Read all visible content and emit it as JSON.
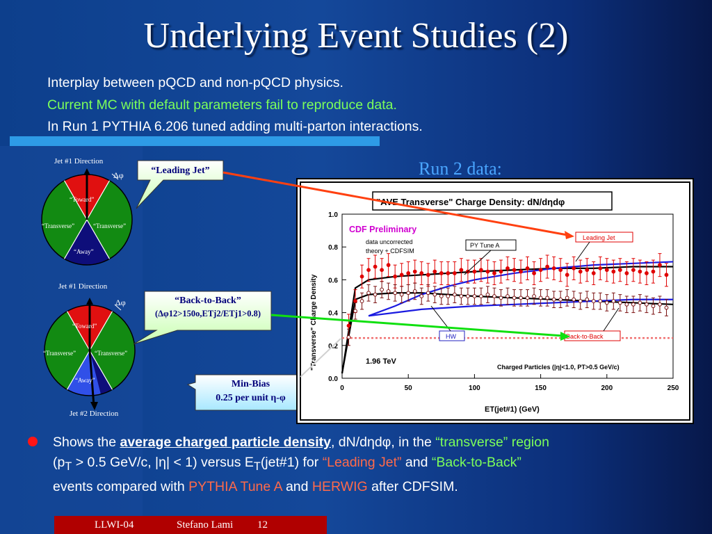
{
  "title": "Underlying Event Studies (2)",
  "intro": {
    "line1": "Interplay between pQCD and non-pQCD physics.",
    "line2": "Current MC with default parameters fail to reproduce data.",
    "line3": "In Run 1 PYTHIA 6.206 tuned adding multi-parton interactions."
  },
  "colors": {
    "green_text": "#7cff5a",
    "red_text": "#ff6a4a",
    "toward": "#e01010",
    "transverse": "#128a12",
    "away": "#0e0e7a",
    "away_light": "#3050e8"
  },
  "wheel1": {
    "top_label": "Jet #1 Direction",
    "dphi": "Δφ",
    "toward": "“Toward”",
    "transverse_left": "“Transverse”",
    "transverse_right": "“Transverse”",
    "away": "“Away”"
  },
  "wheel2": {
    "top_label": "Jet #1 Direction",
    "dphi": "Δφ",
    "toward": "“Toward”",
    "transverse_left": "“Transverse”",
    "transverse_right": "“Transverse”",
    "away": "“Away”",
    "bottom_label": "Jet #2 Direction"
  },
  "callouts": {
    "leading_jet": "“Leading Jet”",
    "back_to_back_1": "“Back-to-Back”",
    "back_to_back_2": "(Δφ12>150o,ETj2/ETj1>0.8)",
    "minbias_1": "Min-Bias",
    "minbias_2": "0.25 per unit η-φ"
  },
  "run2_label": "Run 2 data:",
  "chart_data": {
    "type": "scatter",
    "title": "\"AVE Transverse\" Charge Density: dN/dηdφ",
    "xlabel": "ET(jet#1)   (GeV)",
    "ylabel": "\"Transverse\" Charge Density",
    "xlim": [
      0,
      250
    ],
    "ylim": [
      0,
      1
    ],
    "x_ticks": [
      "0",
      "50",
      "100",
      "150",
      "200",
      "250"
    ],
    "y_ticks": [
      "0.0",
      "0.2",
      "0.4",
      "0.6",
      "0.8",
      "1.0"
    ],
    "annotations": {
      "prelim": "CDF Preliminary",
      "note1": "data uncorrected",
      "note2": "theory + CDFSIM",
      "energy": "1.96 TeV",
      "cuts": "Charged Particles (|η|<1.0, PT>0.5 GeV/c)",
      "py_tune": "PY Tune A",
      "hw": "HW",
      "leading_jet": "Leading Jet",
      "back_to_back": "Back-to-Back"
    },
    "x": [
      5,
      10,
      15,
      20,
      25,
      30,
      35,
      40,
      45,
      50,
      55,
      60,
      65,
      70,
      75,
      80,
      85,
      90,
      95,
      100,
      105,
      110,
      115,
      120,
      125,
      130,
      135,
      140,
      145,
      150,
      155,
      160,
      165,
      170,
      175,
      180,
      185,
      190,
      195,
      200,
      205,
      210,
      215,
      220,
      225,
      230,
      235,
      240,
      245
    ],
    "series": [
      {
        "name": "Leading Jet",
        "values": [
          0.32,
          0.47,
          0.62,
          0.66,
          0.68,
          0.66,
          0.69,
          0.62,
          0.63,
          0.64,
          0.65,
          0.64,
          0.63,
          0.65,
          0.64,
          0.64,
          0.64,
          0.66,
          0.65,
          0.65,
          0.66,
          0.65,
          0.64,
          0.65,
          0.67,
          0.66,
          0.65,
          0.67,
          0.64,
          0.66,
          0.68,
          0.67,
          0.66,
          0.63,
          0.67,
          0.65,
          0.66,
          0.64,
          0.67,
          0.66,
          0.65,
          0.66,
          0.64,
          0.66,
          0.65,
          0.64,
          0.65,
          0.69,
          0.63
        ]
      },
      {
        "name": "Back-to-Back",
        "values": [
          0.25,
          0.41,
          0.47,
          0.52,
          0.51,
          0.54,
          0.53,
          0.52,
          0.51,
          0.52,
          0.53,
          0.5,
          0.52,
          0.51,
          0.5,
          0.5,
          0.51,
          0.5,
          0.5,
          0.5,
          0.5,
          0.51,
          0.5,
          0.49,
          0.5,
          0.49,
          0.49,
          0.49,
          0.5,
          0.49,
          0.49,
          0.48,
          0.48,
          0.49,
          0.48,
          0.47,
          0.48,
          0.47,
          0.47,
          0.46,
          0.47,
          0.46,
          0.45,
          0.45,
          0.46,
          0.45,
          0.44,
          0.45,
          0.43
        ]
      },
      {
        "name": "PY Tune A Leading Jet",
        "x": [
          0,
          10,
          20,
          40,
          60,
          80,
          100,
          130,
          160,
          190,
          220,
          250
        ],
        "values": [
          0.03,
          0.55,
          0.6,
          0.62,
          0.63,
          0.64,
          0.65,
          0.66,
          0.67,
          0.67,
          0.68,
          0.68
        ]
      },
      {
        "name": "PY Tune A Back-to-Back",
        "x": [
          0,
          10,
          20,
          40,
          60,
          80,
          100,
          130,
          160,
          190,
          220,
          250
        ],
        "values": [
          0.03,
          0.48,
          0.51,
          0.52,
          0.52,
          0.51,
          0.5,
          0.49,
          0.48,
          0.47,
          0.46,
          0.45
        ]
      },
      {
        "name": "HW Leading Jet",
        "x": [
          20,
          40,
          60,
          80,
          100,
          130,
          160,
          190,
          220,
          250
        ],
        "values": [
          0.38,
          0.44,
          0.51,
          0.56,
          0.6,
          0.64,
          0.67,
          0.69,
          0.7,
          0.71
        ]
      },
      {
        "name": "HW Back-to-Back",
        "x": [
          20,
          40,
          60,
          80,
          100,
          130,
          160,
          190,
          220,
          250
        ],
        "values": [
          0.38,
          0.4,
          0.42,
          0.43,
          0.44,
          0.45,
          0.46,
          0.47,
          0.48,
          0.48
        ]
      },
      {
        "name": "Min-Bias",
        "x": [
          0,
          250
        ],
        "values": [
          0.245,
          0.245
        ]
      }
    ]
  },
  "bullet": {
    "p1": "Shows the ",
    "p2": "average charged particle density",
    "p3": ", dN/dηdφ, in the ",
    "p4": "“transverse” region",
    "p5": "(p",
    "p5sub": "T",
    "p6": " > 0.5 GeV/c, |η| < 1) versus E",
    "p6sub": "T",
    "p7": "(jet#1) for ",
    "p8": "“Leading Jet”",
    "p9": " and ",
    "p10": "“Back-to-Back”",
    "p11": "events compared with ",
    "p12": "PYTHIA Tune A",
    "p13": " and ",
    "p14": "HERWIG",
    "p15": " after CDFSIM."
  },
  "footer": {
    "left": "LLWI-04",
    "middle": "Stefano Lami",
    "right": "12"
  }
}
